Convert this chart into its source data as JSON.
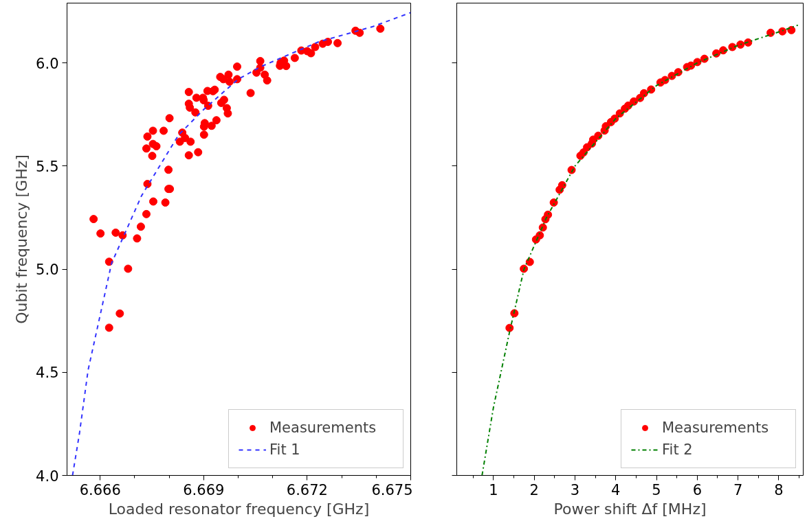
{
  "chart_data": [
    {
      "type": "scatter",
      "xlabel": "Loaded resonator frequency [GHz]",
      "ylabel": "Qubit frequency [GHz]",
      "xlim": [
        6.66504,
        6.675
      ],
      "ylim": [
        4.0,
        6.29
      ],
      "xticks": [
        6.666,
        6.669,
        6.672,
        6.675,
        {
          "value": 6.667,
          "label": null
        },
        {
          "value": 6.668,
          "label": null
        },
        {
          "value": 6.67,
          "label": null
        },
        {
          "value": 6.671,
          "label": null
        },
        {
          "value": 6.673,
          "label": null
        },
        {
          "value": 6.674,
          "label": null
        }
      ],
      "yticks": [
        {
          "value": 4.0,
          "label": "4.0"
        },
        {
          "value": 4.5,
          "label": "4.5"
        },
        {
          "value": 5.0,
          "label": "5.0"
        },
        {
          "value": 5.5,
          "label": "5.5"
        },
        {
          "value": 6.0,
          "label": "6.0"
        }
      ],
      "grid": false,
      "legend": "bottom right",
      "series": [
        {
          "name": "Measurements",
          "type": "scatter",
          "marker": "circle",
          "color": "#ff0000",
          "x": [
            6.66581,
            6.66601,
            6.66645,
            6.66665,
            6.66707,
            6.66718,
            6.66734,
            6.66754,
            6.66789,
            6.66737,
            6.66798,
            6.66802,
            6.66798,
            6.66734,
            6.66751,
            6.66737,
            6.66753,
            6.66753,
            6.66763,
            6.66784,
            6.66801,
            6.66831,
            6.66838,
            6.66846,
            6.66862,
            6.66857,
            6.66884,
            6.66901,
            6.66901,
            6.66903,
            6.66923,
            6.66937,
            6.66857,
            6.66857,
            6.6686,
            6.66876,
            6.66879,
            6.66898,
            6.669,
            6.66913,
            6.66911,
            6.66932,
            6.66927,
            6.66951,
            6.66959,
            6.66967,
            6.6697,
            6.66948,
            6.66957,
            6.66972,
            6.66975,
            6.66997,
            6.66997,
            6.67036,
            6.67053,
            6.67064,
            6.67064,
            6.67077,
            6.67084,
            6.67121,
            6.67133,
            6.67139,
            6.67123,
            6.67164,
            6.67183,
            6.672,
            6.67211,
            6.67223,
            6.67245,
            6.6726,
            6.67288,
            6.6734,
            6.67352,
            6.67412,
            6.66626,
            6.66681,
            6.66657,
            6.66626
          ],
          "values": [
            5.243,
            5.173,
            5.177,
            5.164,
            5.149,
            5.206,
            5.267,
            5.328,
            5.323,
            5.413,
            5.389,
            5.389,
            5.482,
            5.585,
            5.549,
            5.643,
            5.671,
            5.607,
            5.596,
            5.671,
            5.732,
            5.618,
            5.662,
            5.636,
            5.618,
            5.552,
            5.567,
            5.652,
            5.691,
            5.708,
            5.695,
            5.722,
            5.859,
            5.802,
            5.783,
            5.76,
            5.831,
            5.831,
            5.819,
            5.792,
            5.864,
            5.87,
            5.863,
            5.806,
            5.821,
            5.781,
            5.755,
            5.932,
            5.921,
            5.943,
            5.909,
            5.982,
            5.921,
            5.854,
            5.953,
            6.009,
            5.977,
            5.943,
            5.915,
            5.986,
            6.011,
            5.985,
            6.0,
            6.024,
            6.06,
            6.057,
            6.047,
            6.077,
            6.093,
            6.102,
            6.096,
            6.156,
            6.146,
            6.166,
            5.036,
            5.002,
            4.785,
            4.716
          ]
        },
        {
          "name": "Fit 1",
          "type": "line",
          "line_style": "dashed",
          "color": "#3333ff",
          "x": [
            6.6652,
            6.6654,
            6.66565,
            6.66633,
            6.6672,
            6.66827,
            6.669,
            6.67,
            6.67067,
            6.67233,
            6.6739,
            6.675
          ],
          "values": [
            4.0,
            4.203,
            4.51,
            5.028,
            5.356,
            5.65,
            5.774,
            5.921,
            5.983,
            6.102,
            6.176,
            6.244
          ]
        }
      ]
    },
    {
      "type": "scatter",
      "xlabel": "Power shift Δf [MHz]",
      "xlim": [
        0.1,
        8.6
      ],
      "ylim": [
        4.0,
        6.29
      ],
      "tick_labels": "x",
      "xticks": [
        1,
        2,
        3,
        4,
        5,
        6,
        7,
        8,
        {
          "value": 0.5,
          "label": null
        },
        {
          "value": 1.5,
          "label": null
        },
        {
          "value": 2.5,
          "label": null
        },
        {
          "value": 3.5,
          "label": null
        },
        {
          "value": 4.5,
          "label": null
        },
        {
          "value": 5.5,
          "label": null
        },
        {
          "value": 6.5,
          "label": null
        },
        {
          "value": 7.5,
          "label": null
        },
        {
          "value": 8.5,
          "label": null
        }
      ],
      "yticks": [
        4.0,
        4.5,
        5.0,
        5.5,
        6.0
      ],
      "grid": false,
      "legend": "bottom right",
      "series": [
        {
          "name": "Measurements",
          "type": "scatter",
          "marker": "circle",
          "color": "#ff0000",
          "x": [
            1.395,
            1.514,
            1.746,
            1.892,
            2.044,
            2.137,
            2.212,
            2.275,
            2.337,
            2.48,
            2.624,
            2.686,
            2.917,
            3.134,
            3.21,
            3.297,
            3.415,
            3.446,
            3.571,
            3.727,
            3.758,
            3.883,
            3.976,
            4.1,
            4.225,
            4.307,
            4.444,
            4.598,
            4.693,
            4.868,
            5.098,
            5.21,
            5.378,
            5.534,
            5.751,
            5.846,
            6.002,
            6.176,
            6.468,
            6.637,
            6.861,
            7.061,
            7.247,
            7.8,
            8.09,
            8.31
          ],
          "values": [
            4.715,
            4.786,
            5.002,
            5.035,
            5.144,
            5.164,
            5.202,
            5.242,
            5.264,
            5.323,
            5.385,
            5.407,
            5.481,
            5.55,
            5.566,
            5.591,
            5.609,
            5.628,
            5.647,
            5.672,
            5.693,
            5.713,
            5.73,
            5.755,
            5.778,
            5.793,
            5.813,
            5.83,
            5.853,
            5.871,
            5.905,
            5.917,
            5.937,
            5.955,
            5.98,
            5.987,
            6.004,
            6.02,
            6.046,
            6.061,
            6.077,
            6.089,
            6.099,
            6.146,
            6.153,
            6.159
          ]
        },
        {
          "name": "Fit 2",
          "type": "line",
          "line_style": "dashdot",
          "color": "#008000",
          "x": [
            0.72,
            1.0,
            1.4,
            1.75,
            2.3,
            3.0,
            4.0,
            5.0,
            6.0,
            7.0,
            8.0,
            8.47
          ],
          "values": [
            4.0,
            4.33,
            4.7,
            5.0,
            5.25,
            5.5,
            5.73,
            5.89,
            6.0,
            6.085,
            6.15,
            6.183
          ]
        }
      ]
    }
  ]
}
